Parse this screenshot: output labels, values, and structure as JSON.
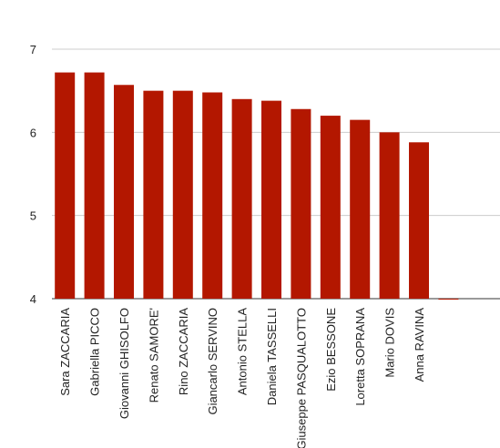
{
  "chart_data": {
    "type": "bar",
    "categories": [
      "Sara ZACCARIA",
      "Gabriella PICCO",
      "Giovanni GHISOLFO",
      "Renato SAMORE'",
      "Rino ZACCARIA",
      "Giancarlo SERVINO",
      "Antonio STELLA",
      "Daniela TASSELLI",
      "Giuseppe PASQUALOTTO",
      "Ezio BESSONE",
      "Loretta SOPRANA",
      "Mario DOVIS",
      "Anna RAVINA",
      null
    ],
    "values": [
      6.72,
      6.72,
      6.57,
      6.5,
      6.5,
      6.48,
      6.4,
      6.38,
      6.28,
      6.2,
      6.15,
      6.0,
      5.88,
      4.0
    ],
    "color": "#b31700",
    "ylim": [
      4,
      7
    ],
    "yticks": [
      4,
      5,
      6,
      7
    ],
    "grid": true
  }
}
